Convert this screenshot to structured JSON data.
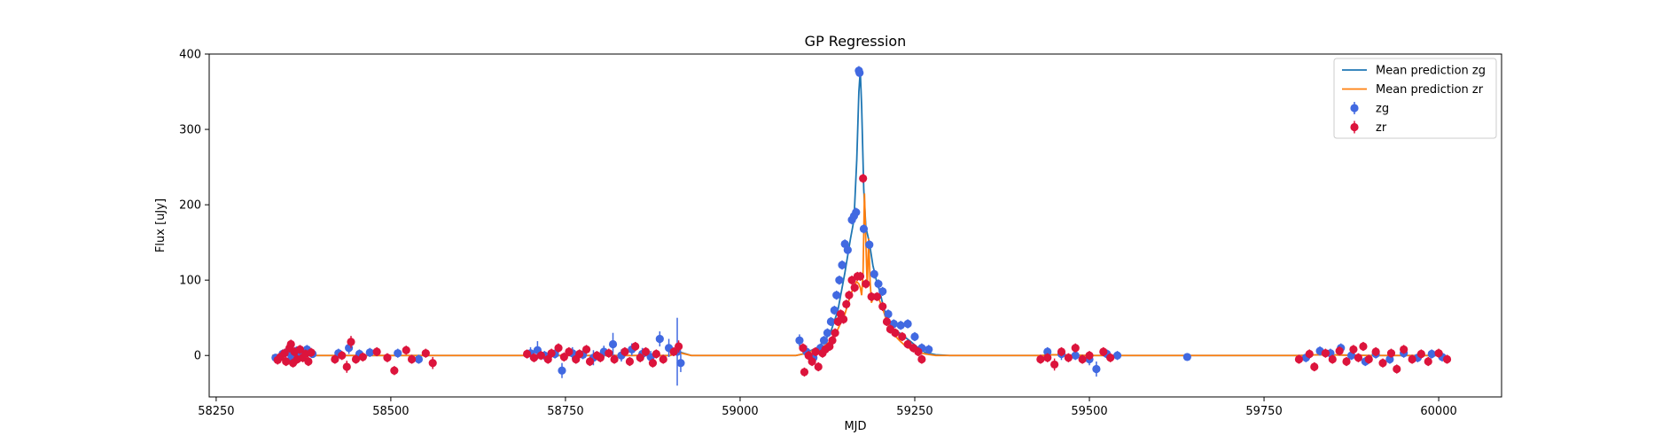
{
  "chart_data": {
    "type": "scatter",
    "title": "GP Regression",
    "xlabel": "MJD",
    "ylabel": "Flux [uJy]",
    "xlim": [
      58240,
      60090
    ],
    "ylim": [
      -55,
      400
    ],
    "xticks": [
      58250,
      58500,
      58750,
      59000,
      59250,
      59500,
      59750,
      60000
    ],
    "yticks": [
      0,
      100,
      200,
      300,
      400
    ],
    "grid": false,
    "legend_position": "top-right",
    "legend": [
      {
        "label": "Mean prediction zg",
        "kind": "line",
        "color": "#1f77b4"
      },
      {
        "label": "Mean prediction zr",
        "kind": "line",
        "color": "#ff7f0e"
      },
      {
        "label": "zg",
        "kind": "errorbar",
        "color": "#4169e1"
      },
      {
        "label": "zr",
        "kind": "errorbar",
        "color": "#dc143c"
      }
    ],
    "series": [
      {
        "name": "Mean prediction zg",
        "kind": "line",
        "color": "#1f77b4",
        "x": [
          58330,
          58600,
          58690,
          58700,
          58710,
          58760,
          58900,
          58912,
          58930,
          59080,
          59090,
          59100,
          59110,
          59120,
          59130,
          59140,
          59150,
          59158,
          59163,
          59167,
          59170,
          59172,
          59174,
          59177,
          59180,
          59185,
          59190,
          59195,
          59200,
          59205,
          59210,
          59215,
          59220,
          59228,
          59235,
          59245,
          59255,
          59265,
          59280,
          59300,
          59430,
          59450,
          59500,
          59540,
          59800,
          59830,
          59900,
          60010
        ],
        "y": [
          0,
          0,
          0,
          2,
          0,
          0,
          0,
          5,
          0,
          0,
          2,
          6,
          10,
          18,
          32,
          60,
          110,
          155,
          180,
          260,
          350,
          378,
          330,
          220,
          170,
          150,
          120,
          100,
          85,
          65,
          50,
          40,
          33,
          30,
          25,
          18,
          10,
          4,
          1,
          0,
          0,
          1,
          0,
          0,
          0,
          1,
          0,
          0
        ]
      },
      {
        "name": "Mean prediction zr",
        "kind": "line",
        "color": "#ff7f0e",
        "x": [
          58330,
          58600,
          58690,
          58700,
          58710,
          58760,
          58900,
          58912,
          58930,
          59080,
          59090,
          59100,
          59110,
          59120,
          59130,
          59140,
          59150,
          59158,
          59163,
          59167,
          59170,
          59172,
          59174,
          59176,
          59178,
          59180,
          59182,
          59184,
          59186,
          59188,
          59190,
          59195,
          59200,
          59205,
          59210,
          59215,
          59220,
          59228,
          59235,
          59245,
          59255,
          59265,
          59280,
          59300,
          59430,
          59450,
          59500,
          59540,
          59800,
          59830,
          59900,
          60010
        ],
        "y": [
          0,
          0,
          0,
          2,
          0,
          0,
          0,
          4,
          0,
          0,
          2,
          5,
          8,
          12,
          20,
          35,
          55,
          80,
          92,
          98,
          95,
          90,
          80,
          110,
          215,
          150,
          90,
          155,
          100,
          70,
          75,
          80,
          72,
          60,
          45,
          35,
          28,
          20,
          14,
          8,
          4,
          2,
          0,
          0,
          0,
          1,
          0,
          0,
          0,
          1,
          0,
          0
        ]
      },
      {
        "name": "zg",
        "kind": "errorbar",
        "color": "#4169e1",
        "points": [
          [
            58335,
            -3,
            5
          ],
          [
            58345,
            2,
            6
          ],
          [
            58352,
            5,
            6
          ],
          [
            58358,
            -2,
            5
          ],
          [
            58365,
            6,
            6
          ],
          [
            58372,
            3,
            5
          ],
          [
            58380,
            8,
            6
          ],
          [
            58388,
            2,
            5
          ],
          [
            58425,
            3,
            6
          ],
          [
            58440,
            10,
            8
          ],
          [
            58455,
            2,
            6
          ],
          [
            58470,
            4,
            6
          ],
          [
            58510,
            3,
            6
          ],
          [
            58540,
            -5,
            6
          ],
          [
            58700,
            3,
            8
          ],
          [
            58710,
            7,
            12
          ],
          [
            58720,
            0,
            6
          ],
          [
            58735,
            2,
            6
          ],
          [
            58745,
            -20,
            10
          ],
          [
            58760,
            3,
            8
          ],
          [
            58775,
            1,
            6
          ],
          [
            58790,
            -3,
            10
          ],
          [
            58805,
            5,
            8
          ],
          [
            58818,
            15,
            15
          ],
          [
            58830,
            0,
            8
          ],
          [
            58845,
            8,
            8
          ],
          [
            58860,
            2,
            8
          ],
          [
            58872,
            -2,
            8
          ],
          [
            58885,
            22,
            10
          ],
          [
            58898,
            10,
            12
          ],
          [
            58910,
            5,
            45
          ],
          [
            58915,
            -10,
            12
          ],
          [
            59085,
            20,
            8
          ],
          [
            59095,
            5,
            8
          ],
          [
            59105,
            -3,
            8
          ],
          [
            59115,
            10,
            6
          ],
          [
            59120,
            20,
            6
          ],
          [
            59125,
            30,
            6
          ],
          [
            59130,
            45,
            6
          ],
          [
            59135,
            60,
            6
          ],
          [
            59138,
            80,
            6
          ],
          [
            59142,
            100,
            6
          ],
          [
            59146,
            120,
            6
          ],
          [
            59150,
            148,
            6
          ],
          [
            59154,
            140,
            6
          ],
          [
            59160,
            180,
            6
          ],
          [
            59163,
            185,
            6
          ],
          [
            59166,
            190,
            6
          ],
          [
            59170,
            378,
            6
          ],
          [
            59171,
            375,
            6
          ],
          [
            59177,
            168,
            6
          ],
          [
            59185,
            147,
            6
          ],
          [
            59192,
            108,
            6
          ],
          [
            59198,
            95,
            6
          ],
          [
            59204,
            85,
            6
          ],
          [
            59212,
            55,
            6
          ],
          [
            59220,
            42,
            6
          ],
          [
            59230,
            40,
            6
          ],
          [
            59240,
            42,
            6
          ],
          [
            59250,
            25,
            6
          ],
          [
            59260,
            10,
            6
          ],
          [
            59270,
            8,
            6
          ],
          [
            59440,
            5,
            6
          ],
          [
            59460,
            2,
            8
          ],
          [
            59480,
            0,
            6
          ],
          [
            59500,
            -5,
            8
          ],
          [
            59510,
            -18,
            10
          ],
          [
            59525,
            2,
            6
          ],
          [
            59540,
            0,
            6
          ],
          [
            59640,
            -2,
            3
          ],
          [
            59810,
            -3,
            6
          ],
          [
            59830,
            6,
            6
          ],
          [
            59845,
            3,
            6
          ],
          [
            59860,
            10,
            6
          ],
          [
            59875,
            0,
            6
          ],
          [
            59895,
            -8,
            6
          ],
          [
            59910,
            2,
            6
          ],
          [
            59930,
            -5,
            6
          ],
          [
            59950,
            3,
            6
          ],
          [
            59970,
            -3,
            6
          ],
          [
            59990,
            2,
            6
          ],
          [
            60005,
            -2,
            6
          ]
        ]
      },
      {
        "name": "zr",
        "kind": "errorbar",
        "color": "#dc143c",
        "points": [
          [
            58338,
            -6,
            6
          ],
          [
            58342,
            -2,
            6
          ],
          [
            58348,
            3,
            6
          ],
          [
            58350,
            -8,
            6
          ],
          [
            58355,
            10,
            6
          ],
          [
            58357,
            15,
            6
          ],
          [
            58360,
            -10,
            6
          ],
          [
            58362,
            5,
            6
          ],
          [
            58366,
            -5,
            6
          ],
          [
            58370,
            8,
            6
          ],
          [
            58374,
            -3,
            6
          ],
          [
            58378,
            2,
            6
          ],
          [
            58382,
            -8,
            6
          ],
          [
            58386,
            4,
            6
          ],
          [
            58420,
            -5,
            6
          ],
          [
            58430,
            0,
            6
          ],
          [
            58437,
            -15,
            8
          ],
          [
            58443,
            18,
            8
          ],
          [
            58450,
            -5,
            6
          ],
          [
            58460,
            -2,
            6
          ],
          [
            58480,
            5,
            6
          ],
          [
            58495,
            -3,
            6
          ],
          [
            58505,
            -20,
            6
          ],
          [
            58522,
            7,
            6
          ],
          [
            58530,
            -5,
            6
          ],
          [
            58550,
            3,
            6
          ],
          [
            58560,
            -10,
            8
          ],
          [
            58695,
            2,
            6
          ],
          [
            58705,
            -3,
            6
          ],
          [
            58715,
            0,
            6
          ],
          [
            58725,
            -5,
            6
          ],
          [
            58730,
            3,
            6
          ],
          [
            58740,
            10,
            6
          ],
          [
            58748,
            -2,
            6
          ],
          [
            58755,
            5,
            6
          ],
          [
            58765,
            -5,
            6
          ],
          [
            58770,
            2,
            6
          ],
          [
            58780,
            8,
            6
          ],
          [
            58785,
            -8,
            6
          ],
          [
            58795,
            0,
            6
          ],
          [
            58800,
            -3,
            6
          ],
          [
            58812,
            3,
            6
          ],
          [
            58820,
            -5,
            6
          ],
          [
            58835,
            5,
            6
          ],
          [
            58842,
            -8,
            6
          ],
          [
            58850,
            12,
            6
          ],
          [
            58857,
            -3,
            6
          ],
          [
            58865,
            5,
            6
          ],
          [
            58875,
            -10,
            6
          ],
          [
            58880,
            2,
            6
          ],
          [
            58890,
            -5,
            6
          ],
          [
            58905,
            5,
            6
          ],
          [
            58912,
            12,
            8
          ],
          [
            59090,
            10,
            6
          ],
          [
            59092,
            -22,
            6
          ],
          [
            59098,
            0,
            6
          ],
          [
            59103,
            -8,
            6
          ],
          [
            59108,
            5,
            6
          ],
          [
            59112,
            -15,
            6
          ],
          [
            59118,
            3,
            6
          ],
          [
            59122,
            8,
            6
          ],
          [
            59128,
            12,
            6
          ],
          [
            59132,
            20,
            6
          ],
          [
            59136,
            30,
            6
          ],
          [
            59140,
            45,
            6
          ],
          [
            59144,
            55,
            6
          ],
          [
            59148,
            48,
            6
          ],
          [
            59152,
            68,
            6
          ],
          [
            59156,
            80,
            6
          ],
          [
            59160,
            100,
            6
          ],
          [
            59164,
            90,
            6
          ],
          [
            59168,
            105,
            6
          ],
          [
            59172,
            105,
            6
          ],
          [
            59176,
            235,
            6
          ],
          [
            59180,
            95,
            6
          ],
          [
            59188,
            78,
            6
          ],
          [
            59196,
            78,
            6
          ],
          [
            59204,
            65,
            6
          ],
          [
            59210,
            45,
            6
          ],
          [
            59215,
            35,
            6
          ],
          [
            59222,
            30,
            6
          ],
          [
            59232,
            25,
            6
          ],
          [
            59240,
            15,
            6
          ],
          [
            59248,
            10,
            6
          ],
          [
            59255,
            5,
            6
          ],
          [
            59260,
            -5,
            6
          ],
          [
            59430,
            -5,
            6
          ],
          [
            59440,
            -3,
            6
          ],
          [
            59450,
            -12,
            8
          ],
          [
            59460,
            5,
            6
          ],
          [
            59470,
            -3,
            6
          ],
          [
            59480,
            10,
            6
          ],
          [
            59490,
            -5,
            6
          ],
          [
            59500,
            0,
            6
          ],
          [
            59520,
            5,
            6
          ],
          [
            59530,
            -3,
            6
          ],
          [
            59800,
            -5,
            6
          ],
          [
            59815,
            2,
            6
          ],
          [
            59822,
            -15,
            6
          ],
          [
            59838,
            3,
            6
          ],
          [
            59848,
            -5,
            6
          ],
          [
            59858,
            6,
            6
          ],
          [
            59868,
            -8,
            6
          ],
          [
            59878,
            8,
            6
          ],
          [
            59885,
            -3,
            6
          ],
          [
            59892,
            12,
            6
          ],
          [
            59900,
            -5,
            6
          ],
          [
            59910,
            5,
            6
          ],
          [
            59920,
            -10,
            6
          ],
          [
            59932,
            3,
            6
          ],
          [
            59940,
            -18,
            6
          ],
          [
            59950,
            8,
            6
          ],
          [
            59962,
            -5,
            6
          ],
          [
            59975,
            2,
            6
          ],
          [
            59985,
            -8,
            6
          ],
          [
            60000,
            3,
            6
          ],
          [
            60012,
            -5,
            6
          ]
        ]
      }
    ]
  }
}
